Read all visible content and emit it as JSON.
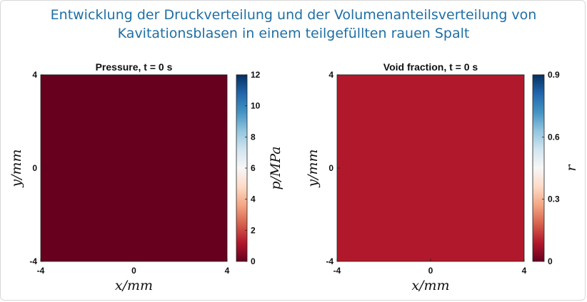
{
  "title_lines": [
    "Entwicklung der Druckverteilung und der Volumenanteilsverteilung von",
    "Kavitationsblasen in einem teilgefüllten rauen Spalt"
  ],
  "colormap": [
    "#67001f",
    "#b2182b",
    "#d6604d",
    "#f4a582",
    "#fddbc7",
    "#f7f7f7",
    "#d1e5f0",
    "#92c5de",
    "#4393c3",
    "#2166ac",
    "#053061"
  ],
  "chart_data": [
    {
      "type": "heatmap",
      "title": "Pressure,  t = 0 s",
      "xlabel": "x/mm",
      "ylabel": "y/mm",
      "xlim": [
        -4,
        4
      ],
      "ylim": [
        -4,
        4
      ],
      "xticks": [
        "-4",
        "0",
        "4"
      ],
      "yticks": [
        "-4",
        "0",
        "4"
      ],
      "field_value": 0,
      "field_color": "#67001f",
      "colorbar": {
        "label": "p/MPa",
        "range": [
          0,
          12
        ],
        "ticks": [
          "0",
          "2",
          "4",
          "6",
          "8",
          "10",
          "12"
        ]
      }
    },
    {
      "type": "heatmap",
      "title": "Void fraction,  t = 0 s",
      "xlabel": "x/mm",
      "ylabel": "y/mm",
      "xlim": [
        -4,
        4
      ],
      "ylim": [
        -4,
        4
      ],
      "xticks": [
        "-4",
        "0",
        "4"
      ],
      "yticks": [
        "-4",
        "0",
        "4"
      ],
      "field_value": 0.1,
      "field_color": "#b2182b",
      "colorbar": {
        "label": "r",
        "range": [
          0,
          0.9
        ],
        "ticks": [
          "0",
          "0.3",
          "0.6",
          "0.9"
        ]
      }
    }
  ]
}
